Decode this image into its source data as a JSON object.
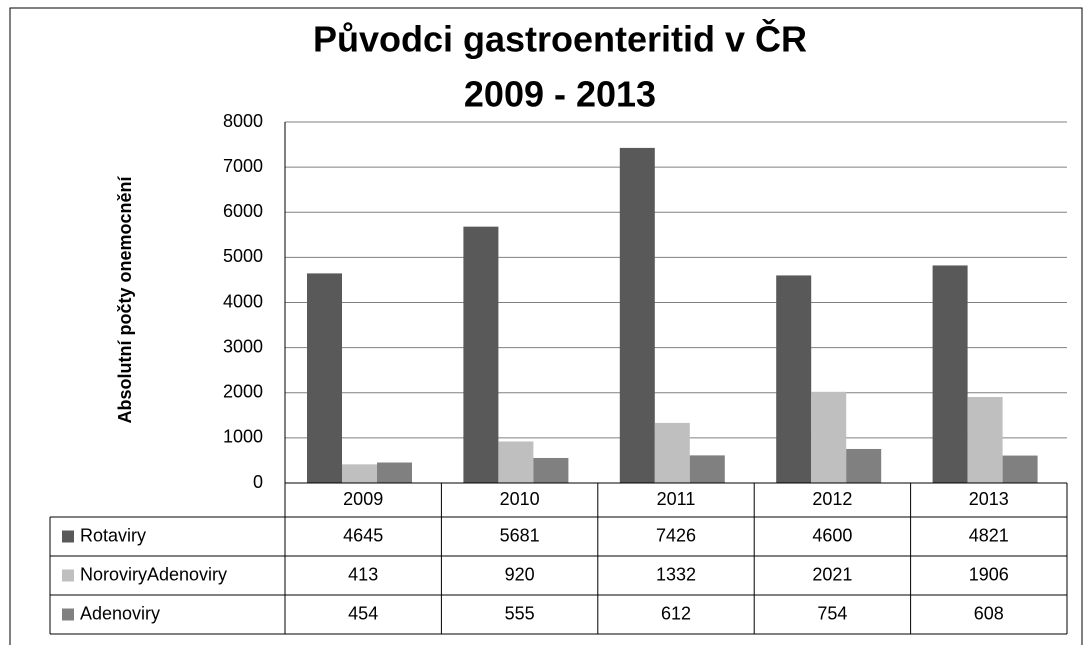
{
  "chart_data": {
    "type": "bar",
    "title": [
      "Původci gastroenteritid v ČR",
      "2009 - 2013"
    ],
    "y_label": "Absolutní počty onemocnění",
    "categories": [
      "2009",
      "2010",
      "2011",
      "2012",
      "2013"
    ],
    "series": [
      {
        "name": "Rotaviry",
        "color": "#595959",
        "values": [
          4645,
          5681,
          7426,
          4600,
          4821
        ]
      },
      {
        "name": "NoroviryAdenoviry",
        "color": "#bfbfbf",
        "values": [
          413,
          920,
          1332,
          2021,
          1906
        ]
      },
      {
        "name": "Adenoviry",
        "color": "#808080",
        "values": [
          454,
          555,
          612,
          754,
          608
        ]
      }
    ],
    "ylim": [
      0,
      8000
    ],
    "yticks": [
      0,
      1000,
      2000,
      3000,
      4000,
      5000,
      6000,
      7000,
      8000
    ],
    "grid": true,
    "data_table": true
  }
}
